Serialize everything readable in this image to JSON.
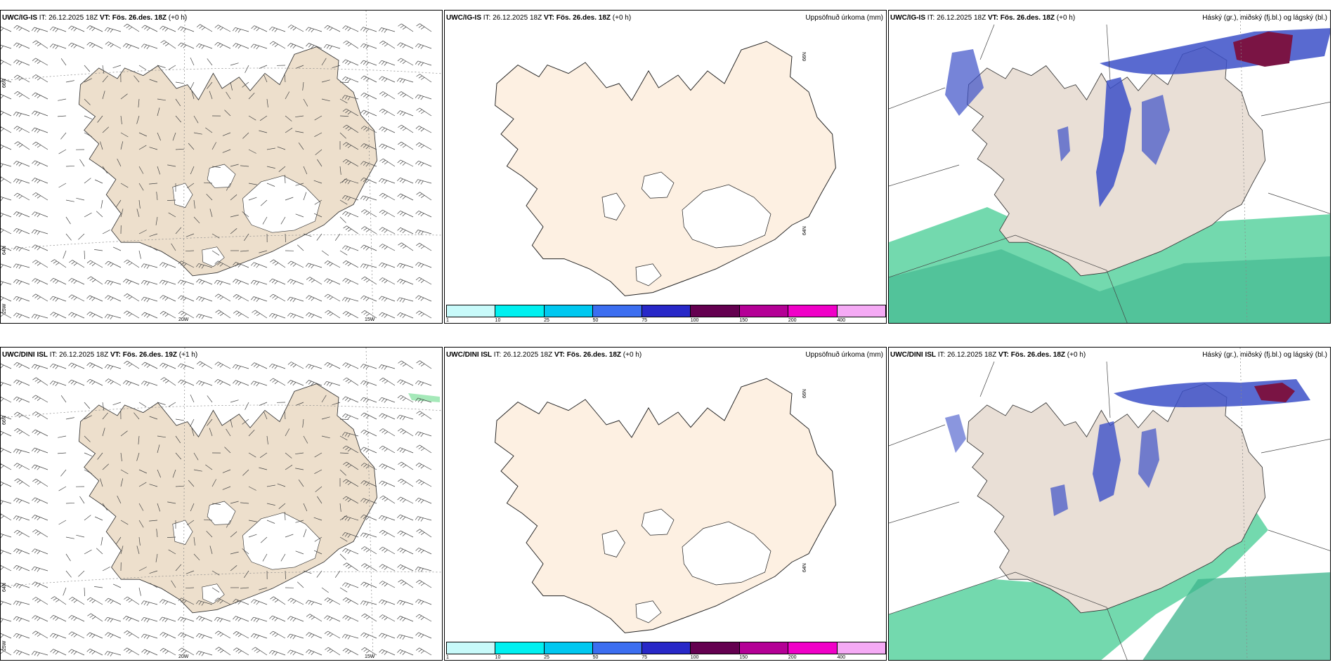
{
  "rows": [
    {
      "panels": [
        {
          "model": "UWC/IG-IS",
          "it_label": "IT:",
          "it_value": "26.12.2025 18Z",
          "vt_label": "VT:",
          "vt_value": "Fös. 26.des. 18Z",
          "lead": "(+0 h)",
          "right_title": ""
        },
        {
          "model": "UWC/IG-IS",
          "it_label": "IT:",
          "it_value": "26.12.2025 18Z",
          "vt_label": "VT:",
          "vt_value": "Fös. 26.des. 18Z",
          "lead": "(+0 h)",
          "right_title": "Uppsöfnuð úrkoma (mm)"
        },
        {
          "model": "UWC/IG-IS",
          "it_label": "IT:",
          "it_value": "26.12.2025 18Z",
          "vt_label": "VT:",
          "vt_value": "Fös. 26.des. 18Z",
          "lead": "(+0 h)",
          "right_title": "Háský (gr.), miðský (fj.bl.) og lágský (bl.)"
        }
      ]
    },
    {
      "panels": [
        {
          "model": "UWC/DINI ISL",
          "it_label": "IT:",
          "it_value": "26.12.2025 18Z",
          "vt_label": "VT:",
          "vt_value": "Fös. 26.des. 19Z",
          "lead": "(+1 h)",
          "right_title": ""
        },
        {
          "model": "UWC/DINI ISL",
          "it_label": "IT:",
          "it_value": "26.12.2025 18Z",
          "vt_label": "VT:",
          "vt_value": "Fös. 26.des. 18Z",
          "lead": "(+0 h)",
          "right_title": "Uppsöfnuð úrkoma (mm)"
        },
        {
          "model": "UWC/DINI ISL",
          "it_label": "IT:",
          "it_value": "26.12.2025 18Z",
          "vt_label": "VT:",
          "vt_value": "Fös. 26.des. 18Z",
          "lead": "(+0 h)",
          "right_title": "Háský (gr.), miðský (fj.bl.) og lágský (bl.)"
        }
      ]
    }
  ],
  "grid_labels": {
    "lon_20w": "20W",
    "lon_15w": "15W",
    "lon_25w": "25W",
    "lat_66n": "66N",
    "lat_64n": "64N"
  },
  "precip_colorbar": {
    "ticks": [
      "1",
      "10",
      "25",
      "50",
      "75",
      "100",
      "150",
      "200",
      "400"
    ],
    "colors": [
      "#c8fafa",
      "#00f0f0",
      "#00c8f0",
      "#3c6ef0",
      "#2828c8",
      "#640050",
      "#b40096",
      "#f000c8",
      "#f5aaf5"
    ]
  },
  "colors": {
    "land_wind": "#eddfcc",
    "land_precip": "#fdf0e2",
    "land_cloud": "#e9dfd6",
    "high_cloud": "#5ad2a0",
    "mid_cloud": "#3c50c8",
    "low_cloud": "#7a1444"
  }
}
